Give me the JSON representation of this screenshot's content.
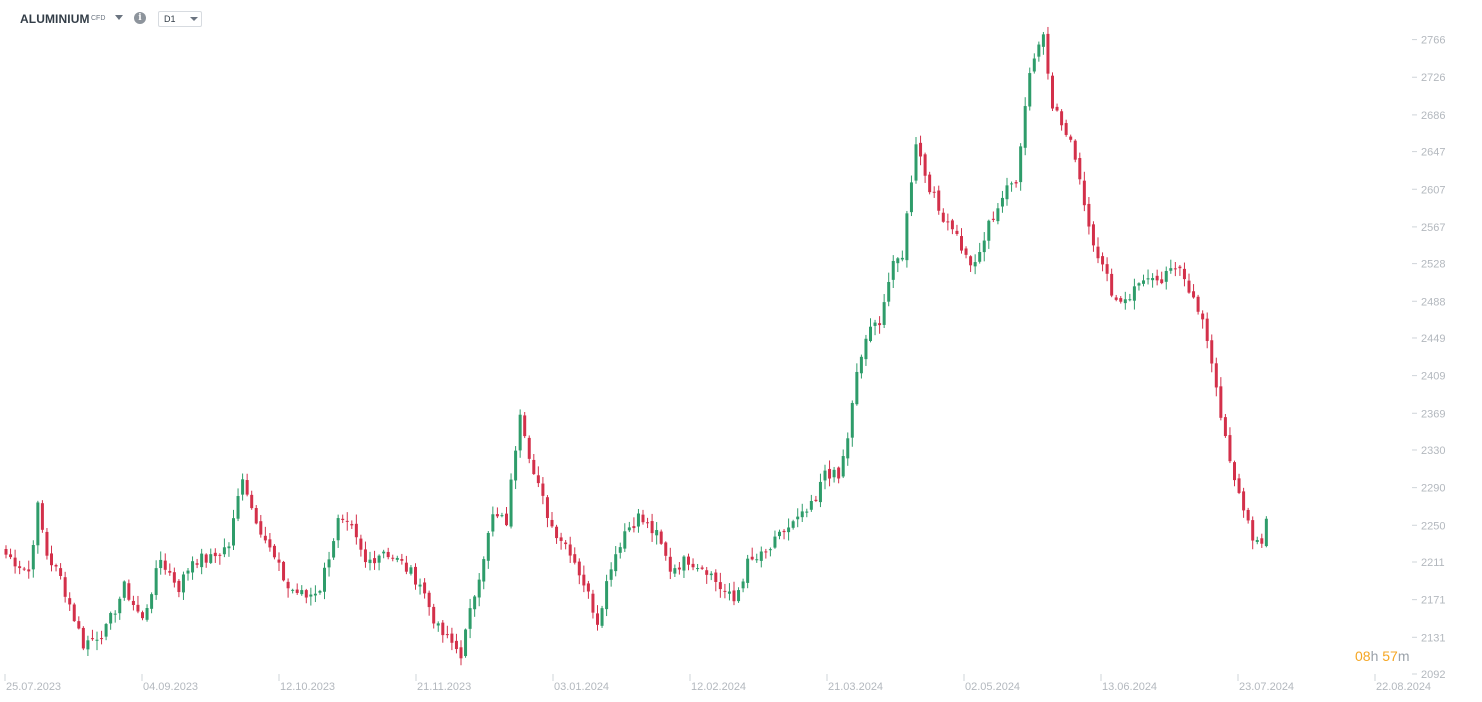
{
  "toolbar": {
    "symbol": "ALUMINIUM",
    "instrument_type": "CFD",
    "timeframe": "D1",
    "icons": {
      "symbol_dropdown": "caret-down-icon",
      "info": "info-icon",
      "timeframe_dropdown": "caret-down-icon"
    }
  },
  "countdown": {
    "hours": "08",
    "hours_unit": "h",
    "minutes": "57",
    "minutes_unit": "m"
  },
  "colors": {
    "up": "#2e9c6a",
    "down": "#d3304a",
    "axis_text": "#b3b8be",
    "tick": "#cfd4d9",
    "countdown": "#f5a623"
  },
  "chart_data": {
    "type": "candlestick",
    "title": "",
    "xlabel": "",
    "ylabel": "",
    "grid": false,
    "ylim": [
      2092,
      2790
    ],
    "y_ticks": [
      "2766",
      "2726",
      "2686",
      "2647",
      "2607",
      "2567",
      "2528",
      "2488",
      "2449",
      "2409",
      "2369",
      "2330",
      "2290",
      "2250",
      "2211",
      "2171",
      "2131",
      "2092"
    ],
    "x_ticks": [
      "25.07.2023",
      "04.09.2023",
      "12.10.2023",
      "21.11.2023",
      "03.01.2024",
      "12.02.2024",
      "21.03.2024",
      "02.05.2024",
      "13.06.2024",
      "23.07.2024",
      "22.08.2024"
    ],
    "anchors": [
      [
        0,
        2220
      ],
      [
        5,
        2202
      ],
      [
        7,
        2270
      ],
      [
        9,
        2220
      ],
      [
        12,
        2195
      ],
      [
        17,
        2125
      ],
      [
        22,
        2140
      ],
      [
        26,
        2185
      ],
      [
        30,
        2150
      ],
      [
        34,
        2215
      ],
      [
        38,
        2185
      ],
      [
        41,
        2215
      ],
      [
        45,
        2215
      ],
      [
        49,
        2230
      ],
      [
        52,
        2305
      ],
      [
        54,
        2270
      ],
      [
        58,
        2225
      ],
      [
        62,
        2185
      ],
      [
        66,
        2175
      ],
      [
        69,
        2185
      ],
      [
        73,
        2255
      ],
      [
        76,
        2245
      ],
      [
        79,
        2210
      ],
      [
        83,
        2225
      ],
      [
        87,
        2210
      ],
      [
        91,
        2190
      ],
      [
        95,
        2140
      ],
      [
        100,
        2115
      ],
      [
        104,
        2200
      ],
      [
        107,
        2260
      ],
      [
        110,
        2255
      ],
      [
        113,
        2375
      ],
      [
        116,
        2305
      ],
      [
        120,
        2250
      ],
      [
        124,
        2225
      ],
      [
        127,
        2190
      ],
      [
        130,
        2150
      ],
      [
        133,
        2210
      ],
      [
        136,
        2245
      ],
      [
        139,
        2260
      ],
      [
        143,
        2240
      ],
      [
        146,
        2205
      ],
      [
        150,
        2215
      ],
      [
        154,
        2205
      ],
      [
        157,
        2185
      ],
      [
        160,
        2170
      ],
      [
        163,
        2210
      ],
      [
        167,
        2220
      ],
      [
        171,
        2245
      ],
      [
        175,
        2260
      ],
      [
        178,
        2275
      ],
      [
        180,
        2310
      ],
      [
        183,
        2300
      ],
      [
        185,
        2345
      ],
      [
        187,
        2410
      ],
      [
        189,
        2450
      ],
      [
        192,
        2470
      ],
      [
        194,
        2510
      ],
      [
        195,
        2525
      ],
      [
        197,
        2540
      ],
      [
        198,
        2580
      ],
      [
        200,
        2660
      ],
      [
        202,
        2625
      ],
      [
        205,
        2585
      ],
      [
        208,
        2570
      ],
      [
        211,
        2535
      ],
      [
        213,
        2525
      ],
      [
        216,
        2570
      ],
      [
        219,
        2600
      ],
      [
        222,
        2620
      ],
      [
        225,
        2735
      ],
      [
        228,
        2775
      ],
      [
        230,
        2700
      ],
      [
        233,
        2665
      ],
      [
        235,
        2645
      ],
      [
        238,
        2570
      ],
      [
        241,
        2525
      ],
      [
        244,
        2490
      ],
      [
        247,
        2495
      ],
      [
        250,
        2515
      ],
      [
        253,
        2505
      ],
      [
        256,
        2520
      ],
      [
        258,
        2530
      ],
      [
        261,
        2490
      ],
      [
        264,
        2450
      ],
      [
        266,
        2400
      ],
      [
        268,
        2340
      ],
      [
        270,
        2295
      ],
      [
        272,
        2270
      ],
      [
        274,
        2240
      ],
      [
        276,
        2225
      ],
      [
        277,
        2260
      ]
    ],
    "last_close": 2258
  }
}
